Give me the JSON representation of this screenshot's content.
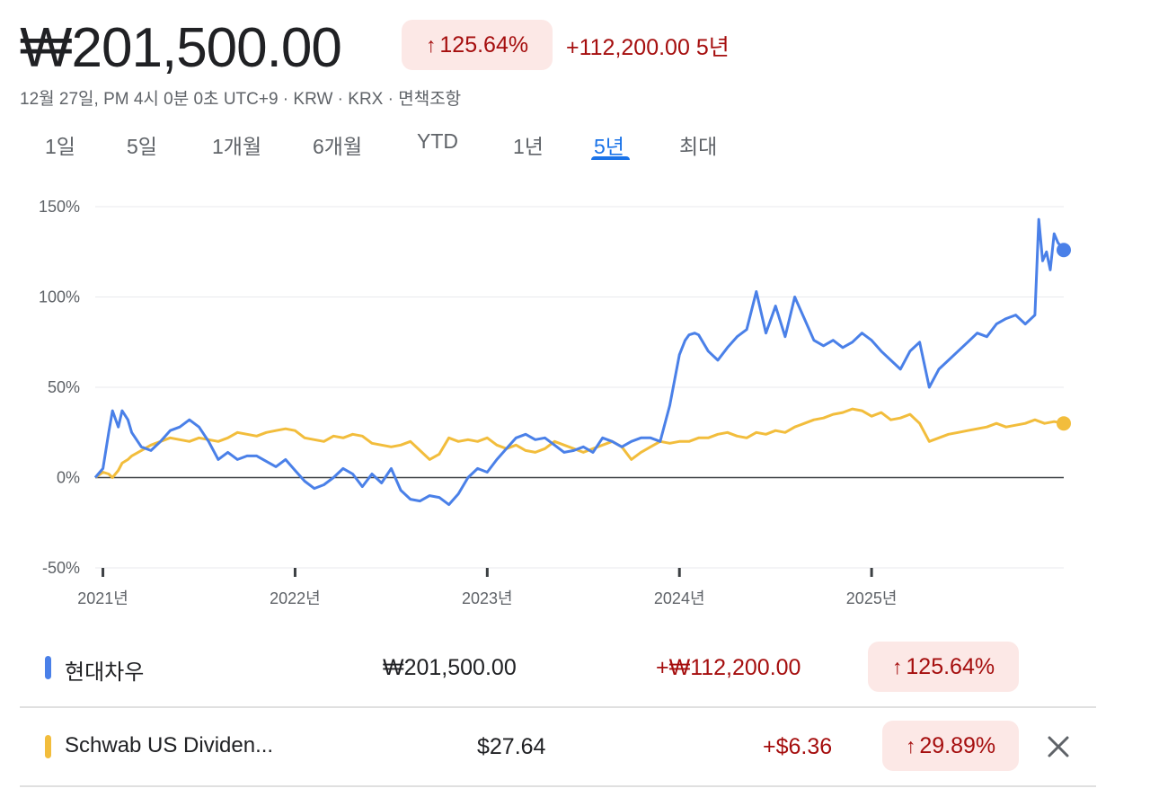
{
  "header": {
    "price": "₩201,500.00",
    "pct_change": "125.64%",
    "abs_change": "+112,200.00",
    "period": "5년",
    "meta": "12월 27일, PM 4시 0분 0초 UTC+9 · KRW · KRX · 면책조항"
  },
  "tabs": [
    {
      "label": "1일"
    },
    {
      "label": "5일"
    },
    {
      "label": "1개월"
    },
    {
      "label": "6개월"
    },
    {
      "label": "YTD"
    },
    {
      "label": "1년"
    },
    {
      "label": "5년",
      "active": true
    },
    {
      "label": "최대"
    }
  ],
  "colors": {
    "series1": "#4a80e8",
    "series2": "#f2bd3c",
    "negative": "#a50e0e",
    "pill_bg": "#fce8e6",
    "active_tab": "#1a73e8"
  },
  "chart_data": {
    "type": "line",
    "ylim": [
      -50,
      150
    ],
    "yticks": [
      150,
      100,
      50,
      0,
      -50
    ],
    "ytick_labels": [
      "150%",
      "100%",
      "50%",
      "0%",
      "-50%"
    ],
    "xlim": [
      2020.96,
      2026.0
    ],
    "xticks": [
      2021.0,
      2022.0,
      2023.0,
      2024.0,
      2025.0
    ],
    "xtick_labels": [
      "2021년",
      "2022년",
      "2023년",
      "2024년",
      "2025년"
    ],
    "grid": true,
    "series": [
      {
        "name": "현대차우",
        "color": "#4a80e8",
        "x": [
          2020.96,
          2021.0,
          2021.03,
          2021.05,
          2021.08,
          2021.1,
          2021.13,
          2021.15,
          2021.2,
          2021.25,
          2021.3,
          2021.35,
          2021.4,
          2021.45,
          2021.5,
          2021.55,
          2021.6,
          2021.65,
          2021.7,
          2021.75,
          2021.8,
          2021.85,
          2021.9,
          2021.95,
          2022.0,
          2022.05,
          2022.1,
          2022.15,
          2022.2,
          2022.25,
          2022.3,
          2022.35,
          2022.4,
          2022.45,
          2022.5,
          2022.55,
          2022.6,
          2022.65,
          2022.7,
          2022.75,
          2022.8,
          2022.85,
          2022.9,
          2022.95,
          2023.0,
          2023.05,
          2023.1,
          2023.15,
          2023.2,
          2023.25,
          2023.3,
          2023.35,
          2023.4,
          2023.45,
          2023.5,
          2023.55,
          2023.6,
          2023.65,
          2023.7,
          2023.75,
          2023.8,
          2023.85,
          2023.9,
          2023.95,
          2024.0,
          2024.03,
          2024.05,
          2024.08,
          2024.1,
          2024.15,
          2024.2,
          2024.25,
          2024.3,
          2024.35,
          2024.4,
          2024.45,
          2024.5,
          2024.55,
          2024.6,
          2024.65,
          2024.7,
          2024.75,
          2024.8,
          2024.85,
          2024.9,
          2024.95,
          2025.0,
          2025.05,
          2025.1,
          2025.15,
          2025.2,
          2025.25,
          2025.3,
          2025.35,
          2025.4,
          2025.45,
          2025.5,
          2025.55,
          2025.6,
          2025.65,
          2025.7,
          2025.75,
          2025.8,
          2025.85,
          2025.87,
          2025.89,
          2025.91,
          2025.93,
          2025.95,
          2025.97,
          2026.0
        ],
        "values": [
          0,
          5,
          25,
          37,
          28,
          37,
          32,
          25,
          17,
          15,
          20,
          26,
          28,
          32,
          28,
          20,
          10,
          14,
          10,
          12,
          12,
          9,
          6,
          10,
          4,
          -2,
          -6,
          -4,
          0,
          5,
          2,
          -5,
          2,
          -3,
          5,
          -7,
          -12,
          -13,
          -10,
          -11,
          -15,
          -9,
          0,
          5,
          3,
          10,
          16,
          22,
          24,
          21,
          22,
          18,
          14,
          15,
          17,
          14,
          22,
          20,
          17,
          20,
          22,
          22,
          20,
          40,
          68,
          76,
          79,
          80,
          79,
          70,
          65,
          72,
          78,
          82,
          103,
          80,
          95,
          78,
          100,
          88,
          76,
          73,
          76,
          72,
          75,
          80,
          76,
          70,
          65,
          60,
          70,
          75,
          50,
          60,
          65,
          70,
          75,
          80,
          78,
          85,
          88,
          90,
          85,
          90,
          143,
          120,
          125,
          115,
          135,
          130,
          126
        ]
      },
      {
        "name": "Schwab US Dividend Equity ETF",
        "color": "#f2bd3c",
        "x": [
          2020.96,
          2021.0,
          2021.03,
          2021.05,
          2021.08,
          2021.1,
          2021.13,
          2021.15,
          2021.2,
          2021.25,
          2021.3,
          2021.35,
          2021.4,
          2021.45,
          2021.5,
          2021.55,
          2021.6,
          2021.65,
          2021.7,
          2021.75,
          2021.8,
          2021.85,
          2021.9,
          2021.95,
          2022.0,
          2022.05,
          2022.1,
          2022.15,
          2022.2,
          2022.25,
          2022.3,
          2022.35,
          2022.4,
          2022.45,
          2022.5,
          2022.55,
          2022.6,
          2022.65,
          2022.7,
          2022.75,
          2022.8,
          2022.85,
          2022.9,
          2022.95,
          2023.0,
          2023.05,
          2023.1,
          2023.15,
          2023.2,
          2023.25,
          2023.3,
          2023.35,
          2023.4,
          2023.45,
          2023.5,
          2023.55,
          2023.6,
          2023.65,
          2023.7,
          2023.75,
          2023.8,
          2023.85,
          2023.9,
          2023.95,
          2024.0,
          2024.05,
          2024.1,
          2024.15,
          2024.2,
          2024.25,
          2024.3,
          2024.35,
          2024.4,
          2024.45,
          2024.5,
          2024.55,
          2024.6,
          2024.65,
          2024.7,
          2024.75,
          2024.8,
          2024.85,
          2024.9,
          2024.95,
          2025.0,
          2025.05,
          2025.1,
          2025.15,
          2025.2,
          2025.25,
          2025.3,
          2025.35,
          2025.4,
          2025.45,
          2025.5,
          2025.55,
          2025.6,
          2025.65,
          2025.7,
          2025.75,
          2025.8,
          2025.85,
          2025.9,
          2025.95,
          2026.0
        ],
        "values": [
          0,
          3,
          2,
          0,
          4,
          8,
          10,
          12,
          15,
          18,
          20,
          22,
          21,
          20,
          22,
          21,
          20,
          22,
          25,
          24,
          23,
          25,
          26,
          27,
          26,
          22,
          21,
          20,
          23,
          22,
          24,
          23,
          19,
          18,
          17,
          18,
          20,
          15,
          10,
          13,
          22,
          20,
          21,
          20,
          22,
          18,
          16,
          18,
          15,
          14,
          16,
          20,
          18,
          16,
          14,
          16,
          18,
          20,
          17,
          10,
          14,
          17,
          20,
          19,
          20,
          20,
          22,
          22,
          24,
          25,
          23,
          22,
          25,
          24,
          26,
          25,
          28,
          30,
          32,
          33,
          35,
          36,
          38,
          37,
          34,
          36,
          32,
          33,
          35,
          30,
          20,
          22,
          24,
          25,
          26,
          27,
          28,
          30,
          28,
          29,
          30,
          32,
          30,
          31,
          30
        ]
      }
    ]
  },
  "table": {
    "rows": [
      {
        "name": "현대차우",
        "price": "₩201,500.00",
        "change": "+₩112,200.00",
        "pct": "125.64%"
      },
      {
        "name": "Schwab US Dividen...",
        "price": "$27.64",
        "change": "+$6.36",
        "pct": "29.89%"
      }
    ]
  }
}
